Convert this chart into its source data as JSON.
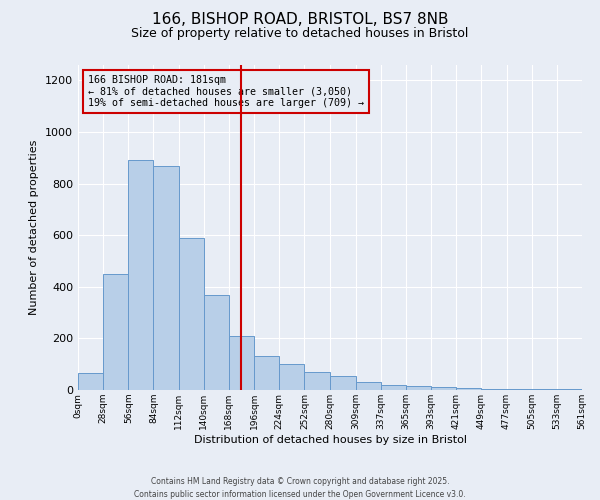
{
  "title_line1": "166, BISHOP ROAD, BRISTOL, BS7 8NB",
  "title_line2": "Size of property relative to detached houses in Bristol",
  "xlabel": "Distribution of detached houses by size in Bristol",
  "ylabel": "Number of detached properties",
  "annotation_title": "166 BISHOP ROAD: 181sqm",
  "annotation_line2": "← 81% of detached houses are smaller (3,050)",
  "annotation_line3": "19% of semi-detached houses are larger (709) →",
  "marker_value": 181,
  "bin_edges": [
    0,
    28,
    56,
    84,
    112,
    140,
    168,
    196,
    224,
    252,
    280,
    309,
    337,
    365,
    393,
    421,
    449,
    477,
    505,
    533,
    561
  ],
  "bar_heights": [
    65,
    450,
    890,
    870,
    590,
    370,
    210,
    130,
    100,
    70,
    55,
    30,
    20,
    15,
    12,
    8,
    5,
    3,
    2,
    2
  ],
  "bar_color": "#b8cfe8",
  "bar_edge_color": "#6699cc",
  "marker_color": "#cc0000",
  "background_color": "#e8edf5",
  "ylim": [
    0,
    1260
  ],
  "yticks": [
    0,
    200,
    400,
    600,
    800,
    1000,
    1200
  ],
  "footnote1": "Contains HM Land Registry data © Crown copyright and database right 2025.",
  "footnote2": "Contains public sector information licensed under the Open Government Licence v3.0."
}
